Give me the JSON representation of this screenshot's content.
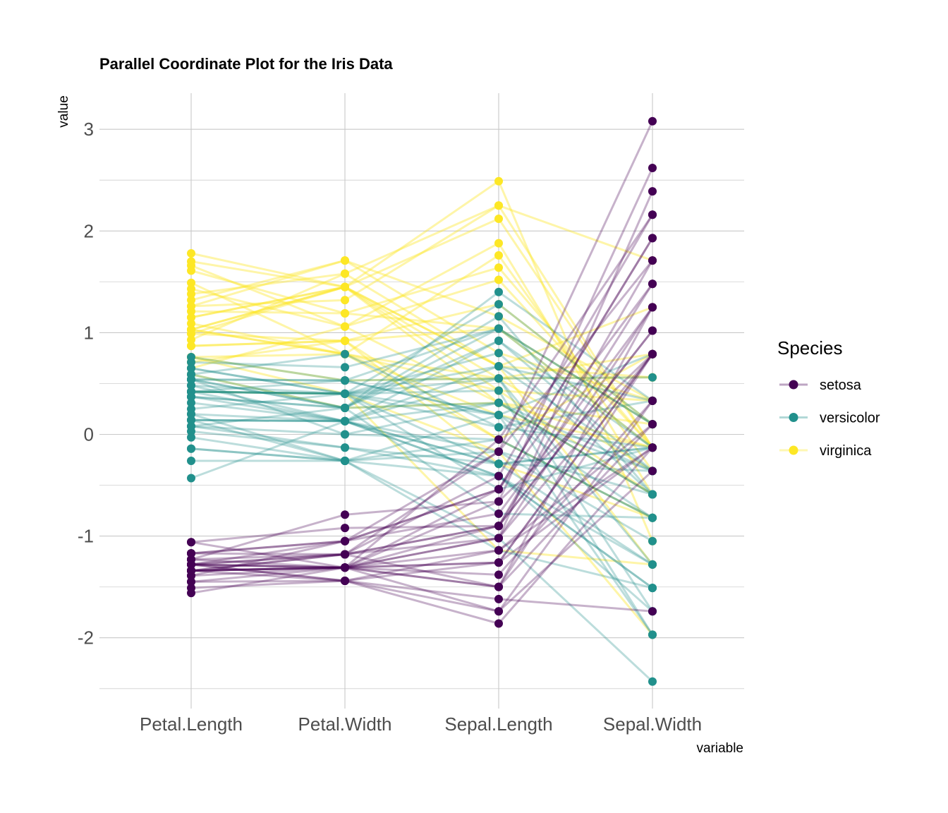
{
  "chart_data": {
    "type": "line",
    "subtype": "parallel-coordinates",
    "title": "Parallel Coordinate Plot for the Iris Data",
    "xlabel": "variable",
    "ylabel": "value",
    "categories": [
      "Petal.Length",
      "Petal.Width",
      "Sepal.Length",
      "Sepal.Width"
    ],
    "y_ticks": [
      3,
      2,
      1,
      0,
      -1,
      -2
    ],
    "y_tick_labels": [
      "3",
      "2",
      "1",
      "0",
      "-1",
      "-2"
    ],
    "ylim": [
      -2.6,
      3.35
    ],
    "grid": true,
    "legend": {
      "title": "Species",
      "position": "right",
      "entries": [
        "setosa",
        "versicolor",
        "virginica"
      ]
    },
    "colors": {
      "setosa": "#440154",
      "versicolor": "#21908C",
      "virginica": "#FDE725"
    },
    "series": [
      {
        "name": "setosa",
        "values": [
          -1.34,
          -1.31,
          -0.9,
          1.02
        ]
      },
      {
        "name": "setosa",
        "values": [
          -1.34,
          -1.31,
          -1.14,
          -0.13
        ]
      },
      {
        "name": "setosa",
        "values": [
          -1.39,
          -1.31,
          -1.38,
          0.33
        ]
      },
      {
        "name": "setosa",
        "values": [
          -1.28,
          -1.31,
          -1.5,
          0.1
        ]
      },
      {
        "name": "setosa",
        "values": [
          -1.34,
          -1.31,
          -1.02,
          1.25
        ]
      },
      {
        "name": "setosa",
        "values": [
          -1.17,
          -1.05,
          -0.54,
          1.93
        ]
      },
      {
        "name": "setosa",
        "values": [
          -1.34,
          -1.18,
          -1.5,
          0.79
        ]
      },
      {
        "name": "setosa",
        "values": [
          -1.28,
          -1.31,
          -1.02,
          0.79
        ]
      },
      {
        "name": "setosa",
        "values": [
          -1.34,
          -1.31,
          -1.74,
          -0.36
        ]
      },
      {
        "name": "setosa",
        "values": [
          -1.28,
          -1.44,
          -1.14,
          0.1
        ]
      },
      {
        "name": "setosa",
        "values": [
          -1.28,
          -1.31,
          -0.54,
          1.48
        ]
      },
      {
        "name": "setosa",
        "values": [
          -1.23,
          -1.31,
          -1.26,
          0.79
        ]
      },
      {
        "name": "setosa",
        "values": [
          -1.34,
          -1.44,
          -1.26,
          -0.13
        ]
      },
      {
        "name": "setosa",
        "values": [
          -1.51,
          -1.44,
          -1.86,
          -0.13
        ]
      },
      {
        "name": "setosa",
        "values": [
          -1.45,
          -1.31,
          -0.05,
          2.16
        ]
      },
      {
        "name": "setosa",
        "values": [
          -1.28,
          -1.05,
          -0.17,
          3.08
        ]
      },
      {
        "name": "setosa",
        "values": [
          -1.39,
          -1.05,
          -0.54,
          1.93
        ]
      },
      {
        "name": "setosa",
        "values": [
          -1.34,
          -1.18,
          -0.9,
          1.02
        ]
      },
      {
        "name": "setosa",
        "values": [
          -1.17,
          -1.18,
          -0.17,
          1.71
        ]
      },
      {
        "name": "setosa",
        "values": [
          -1.28,
          -1.18,
          -0.9,
          1.71
        ]
      },
      {
        "name": "setosa",
        "values": [
          -1.06,
          -0.92,
          -0.9,
          1.48
        ]
      },
      {
        "name": "setosa",
        "values": [
          -1.56,
          -1.31,
          -1.5,
          1.25
        ]
      },
      {
        "name": "setosa",
        "values": [
          -1.23,
          -0.79,
          -0.66,
          0.79
        ]
      },
      {
        "name": "setosa",
        "values": [
          -1.06,
          -1.31,
          -1.26,
          0.79
        ]
      },
      {
        "name": "setosa",
        "values": [
          -1.23,
          -1.18,
          -1.02,
          2.39
        ]
      },
      {
        "name": "setosa",
        "values": [
          -1.28,
          -1.44,
          -1.62,
          -1.74
        ]
      },
      {
        "name": "setosa",
        "values": [
          -1.34,
          -1.31,
          -0.66,
          2.62
        ]
      },
      {
        "name": "setosa",
        "values": [
          -1.45,
          -1.44,
          -1.74,
          0.33
        ]
      },
      {
        "name": "setosa",
        "values": [
          -1.28,
          -1.18,
          -0.41,
          2.16
        ]
      },
      {
        "name": "setosa",
        "values": [
          -1.17,
          -1.05,
          -0.78,
          1.25
        ]
      },
      {
        "name": "versicolor",
        "values": [
          0.54,
          0.26,
          1.4,
          0.33
        ]
      },
      {
        "name": "versicolor",
        "values": [
          0.42,
          0.4,
          0.67,
          0.33
        ]
      },
      {
        "name": "versicolor",
        "values": [
          0.65,
          0.4,
          1.28,
          0.1
        ]
      },
      {
        "name": "versicolor",
        "values": [
          0.14,
          0.13,
          -0.41,
          -1.74
        ]
      },
      {
        "name": "versicolor",
        "values": [
          0.48,
          0.4,
          0.8,
          -0.59
        ]
      },
      {
        "name": "versicolor",
        "values": [
          0.42,
          0.13,
          -0.17,
          -0.59
        ]
      },
      {
        "name": "versicolor",
        "values": [
          0.54,
          0.53,
          0.55,
          0.56
        ]
      },
      {
        "name": "versicolor",
        "values": [
          -0.26,
          -0.26,
          -1.14,
          -1.51
        ]
      },
      {
        "name": "versicolor",
        "values": [
          0.48,
          0.13,
          0.92,
          -0.36
        ]
      },
      {
        "name": "versicolor",
        "values": [
          0.08,
          0.26,
          -0.78,
          -0.82
        ]
      },
      {
        "name": "versicolor",
        "values": [
          -0.14,
          -0.26,
          -1.02,
          -2.43
        ]
      },
      {
        "name": "versicolor",
        "values": [
          0.25,
          0.4,
          0.07,
          -0.13
        ]
      },
      {
        "name": "versicolor",
        "values": [
          0.14,
          -0.26,
          0.19,
          -1.97
        ]
      },
      {
        "name": "versicolor",
        "values": [
          0.54,
          0.26,
          0.31,
          -0.36
        ]
      },
      {
        "name": "versicolor",
        "values": [
          -0.43,
          0.13,
          -0.29,
          -0.36
        ]
      },
      {
        "name": "versicolor",
        "values": [
          0.37,
          0.26,
          1.04,
          0.1
        ]
      },
      {
        "name": "versicolor",
        "values": [
          0.42,
          0.4,
          -0.29,
          -0.13
        ]
      },
      {
        "name": "versicolor",
        "values": [
          0.2,
          -0.26,
          -0.05,
          -0.82
        ]
      },
      {
        "name": "versicolor",
        "values": [
          0.42,
          0.4,
          0.43,
          -1.97
        ]
      },
      {
        "name": "versicolor",
        "values": [
          0.08,
          -0.13,
          -0.29,
          -1.28
        ]
      },
      {
        "name": "versicolor",
        "values": [
          0.59,
          0.79,
          0.07,
          0.33
        ]
      },
      {
        "name": "versicolor",
        "values": [
          0.14,
          0.13,
          0.31,
          -0.59
        ]
      },
      {
        "name": "versicolor",
        "values": [
          0.65,
          0.4,
          0.55,
          -1.28
        ]
      },
      {
        "name": "versicolor",
        "values": [
          0.54,
          0.0,
          0.31,
          -0.59
        ]
      },
      {
        "name": "versicolor",
        "values": [
          0.31,
          0.13,
          0.67,
          -0.36
        ]
      },
      {
        "name": "versicolor",
        "values": [
          0.37,
          0.26,
          0.92,
          -0.13
        ]
      },
      {
        "name": "versicolor",
        "values": [
          0.59,
          0.26,
          1.16,
          -0.59
        ]
      },
      {
        "name": "versicolor",
        "values": [
          0.71,
          0.66,
          1.04,
          -0.13
        ]
      },
      {
        "name": "versicolor",
        "values": [
          0.42,
          0.4,
          0.19,
          -0.36
        ]
      },
      {
        "name": "versicolor",
        "values": [
          -0.14,
          -0.26,
          -0.17,
          -1.05
        ]
      },
      {
        "name": "versicolor",
        "values": [
          0.03,
          -0.13,
          -0.41,
          -1.51
        ]
      },
      {
        "name": "versicolor",
        "values": [
          -0.03,
          -0.26,
          -0.41,
          -1.51
        ]
      },
      {
        "name": "versicolor",
        "values": [
          0.08,
          0.0,
          -0.05,
          -0.82
        ]
      },
      {
        "name": "versicolor",
        "values": [
          0.76,
          0.53,
          0.19,
          -0.82
        ]
      },
      {
        "name": "versicolor",
        "values": [
          0.42,
          0.4,
          -0.54,
          -0.13
        ]
      },
      {
        "name": "versicolor",
        "values": [
          0.42,
          0.53,
          0.19,
          0.79
        ]
      },
      {
        "name": "versicolor",
        "values": [
          0.54,
          0.53,
          1.04,
          0.1
        ]
      },
      {
        "name": "versicolor",
        "values": [
          0.37,
          0.13,
          0.55,
          -1.74
        ]
      },
      {
        "name": "versicolor",
        "values": [
          0.2,
          0.13,
          -0.29,
          -0.13
        ]
      },
      {
        "name": "versicolor",
        "values": [
          0.14,
          0.13,
          -0.41,
          -1.28
        ]
      },
      {
        "name": "virginica",
        "values": [
          1.7,
          1.45,
          0.55,
          0.56
        ]
      },
      {
        "name": "virginica",
        "values": [
          1.03,
          0.79,
          -0.05,
          -0.82
        ]
      },
      {
        "name": "virginica",
        "values": [
          1.26,
          1.32,
          2.25,
          -0.13
        ]
      },
      {
        "name": "virginica",
        "values": [
          1.03,
          1.45,
          0.31,
          -0.13
        ]
      },
      {
        "name": "virginica",
        "values": [
          1.15,
          1.45,
          2.12,
          -0.13
        ]
      },
      {
        "name": "virginica",
        "values": [
          1.32,
          1.71,
          1.16,
          0.33
        ]
      },
      {
        "name": "virginica",
        "values": [
          0.76,
          0.4,
          -1.14,
          -1.28
        ]
      },
      {
        "name": "virginica",
        "values": [
          1.49,
          0.79,
          1.76,
          -0.36
        ]
      },
      {
        "name": "virginica",
        "values": [
          1.03,
          0.79,
          0.55,
          0.79
        ]
      },
      {
        "name": "virginica",
        "values": [
          1.21,
          1.19,
          1.04,
          0.1
        ]
      },
      {
        "name": "virginica",
        "values": [
          1.38,
          1.58,
          2.25,
          1.71
        ]
      },
      {
        "name": "virginica",
        "values": [
          1.78,
          1.45,
          2.49,
          -1.05
        ]
      },
      {
        "name": "virginica",
        "values": [
          1.66,
          1.06,
          1.88,
          -0.59
        ]
      },
      {
        "name": "virginica",
        "values": [
          0.65,
          1.06,
          0.31,
          0.1
        ]
      },
      {
        "name": "virginica",
        "values": [
          1.61,
          1.19,
          1.64,
          -0.13
        ]
      },
      {
        "name": "virginica",
        "values": [
          1.09,
          0.79,
          0.43,
          -0.59
        ]
      },
      {
        "name": "virginica",
        "values": [
          0.99,
          1.45,
          0.67,
          0.56
        ]
      },
      {
        "name": "virginica",
        "values": [
          0.76,
          0.79,
          0.19,
          -0.13
        ]
      },
      {
        "name": "virginica",
        "values": [
          0.87,
          0.92,
          1.28,
          0.1
        ]
      },
      {
        "name": "virginica",
        "values": [
          1.15,
          1.45,
          0.67,
          -1.28
        ]
      },
      {
        "name": "virginica",
        "values": [
          1.43,
          1.06,
          1.52,
          -0.13
        ]
      },
      {
        "name": "virginica",
        "values": [
          0.76,
          0.53,
          0.55,
          -0.36
        ]
      },
      {
        "name": "virginica",
        "values": [
          0.93,
          1.58,
          0.67,
          1.25
        ]
      },
      {
        "name": "virginica",
        "values": [
          0.87,
          0.92,
          -0.29,
          -0.82
        ]
      },
      {
        "name": "virginica",
        "values": [
          0.59,
          0.26,
          0.31,
          -0.59
        ]
      },
      {
        "name": "virginica",
        "values": [
          0.71,
          0.92,
          -0.05,
          0.79
        ]
      },
      {
        "name": "virginica",
        "values": [
          0.42,
          0.4,
          -0.17,
          -1.97
        ]
      },
      {
        "name": "virginica",
        "values": [
          1.03,
          1.45,
          0.43,
          0.33
        ]
      },
      {
        "name": "virginica",
        "values": [
          1.26,
          1.71,
          0.8,
          0.33
        ]
      },
      {
        "name": "virginica",
        "values": [
          0.99,
          0.92,
          1.04,
          -0.13
        ]
      }
    ]
  }
}
